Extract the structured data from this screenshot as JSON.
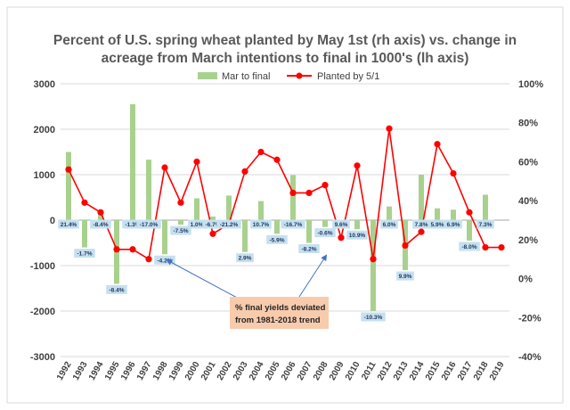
{
  "chart_data": {
    "type": "bar+line",
    "title_line1": "Percent of U.S. spring wheat planted by May 1st (rh axis) vs. change in",
    "title_line2": "acreage from March intentions to final in 1000's (lh axis)",
    "categories": [
      "1992",
      "1993",
      "1994",
      "1995",
      "1996",
      "1997",
      "1998",
      "1999",
      "2000",
      "2001",
      "2002",
      "2003",
      "2004",
      "2005",
      "2006",
      "2007",
      "2008",
      "2009",
      "2010",
      "2011",
      "2012",
      "2013",
      "2014",
      "2015",
      "2016",
      "2017",
      "2018",
      "2019"
    ],
    "y_left_ticks": [
      "3000",
      "2000",
      "1000",
      "0",
      "-1000",
      "-2000",
      "-3000"
    ],
    "y_left_range": [
      -3000,
      3000
    ],
    "y_right_ticks": [
      "100%",
      "80%",
      "60%",
      "40%",
      "20%",
      "0%",
      "-20%",
      "-40%"
    ],
    "y_right_range": [
      -40,
      100
    ],
    "series": [
      {
        "name": "Mar to final",
        "axis": "left",
        "type": "bar",
        "color": "#a9d18e",
        "values": [
          1500,
          -600,
          150,
          -1400,
          2550,
          1330,
          -750,
          -100,
          480,
          80,
          540,
          -700,
          420,
          -300,
          990,
          -500,
          -150,
          10,
          -200,
          -2000,
          300,
          -1100,
          1000,
          260,
          230,
          -450,
          560,
          0
        ]
      },
      {
        "name": "Planted by 5/1",
        "axis": "right",
        "type": "line",
        "color": "#ff0000",
        "values": [
          56,
          39,
          34,
          15,
          15,
          10,
          57,
          39,
          60,
          23,
          28,
          55,
          65,
          61,
          44,
          44,
          48,
          21,
          58,
          10,
          77,
          17,
          24,
          69,
          54,
          34,
          16,
          16
        ]
      }
    ],
    "yield_deviation_labels": [
      "21.4%",
      "-1.7%",
      "-8.4%",
      "-8.4%",
      "-1.3%",
      "-17.0%",
      "-4.2%",
      "-7.5%",
      "1.0%",
      "-6.7%",
      "-21.2%",
      "2.9%",
      "10.7%",
      "-5.9%",
      "-16.7%",
      "-8.2%",
      "-0.6%",
      "9.6%",
      "10.9%",
      "-10.3%",
      "6.0%",
      "9.9%",
      "7.8%",
      "5.9%",
      "6.9%",
      "-8.0%",
      "7.3%"
    ],
    "annotation": [
      "% final yields deviated",
      "from 1981-2018 trend"
    ],
    "legend_position": "top-center",
    "grid": true
  },
  "colors": {
    "bar": "#a9d18e",
    "line": "#ff0000",
    "label_box": "#c5e0ee",
    "annotation_box": "#f8cbad",
    "arrow": "#4472c4",
    "grid": "#d9d9d9",
    "zero_line": "#a6a6a6"
  }
}
